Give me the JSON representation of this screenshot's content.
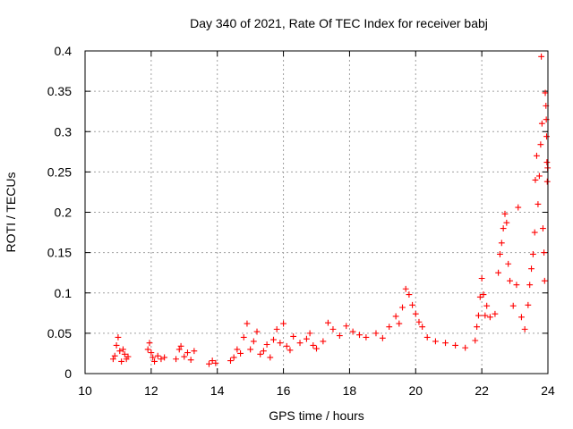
{
  "chart_data": {
    "type": "scatter",
    "title": "Day 340 of 2021, Rate Of TEC Index for receiver babj",
    "xlabel": "GPS time / hours",
    "ylabel": "ROTI / TECUs",
    "xlim": [
      10,
      24
    ],
    "ylim": [
      0,
      0.4
    ],
    "xticks": [
      "10",
      "12",
      "14",
      "16",
      "18",
      "20",
      "22",
      "24"
    ],
    "yticks": [
      "0",
      "0.05",
      "0.1",
      "0.15",
      "0.2",
      "0.25",
      "0.3",
      "0.35",
      "0.4"
    ],
    "grid": true,
    "marker": "plus",
    "series": [
      {
        "name": "ROTI",
        "color": "#ff0000",
        "points": [
          [
            10.85,
            0.018
          ],
          [
            10.9,
            0.022
          ],
          [
            10.95,
            0.035
          ],
          [
            11.0,
            0.045
          ],
          [
            11.05,
            0.028
          ],
          [
            11.1,
            0.015
          ],
          [
            11.15,
            0.03
          ],
          [
            11.2,
            0.024
          ],
          [
            11.25,
            0.018
          ],
          [
            11.3,
            0.021
          ],
          [
            11.9,
            0.03
          ],
          [
            11.95,
            0.038
          ],
          [
            12.0,
            0.026
          ],
          [
            12.05,
            0.02
          ],
          [
            12.1,
            0.015
          ],
          [
            12.2,
            0.022
          ],
          [
            12.3,
            0.018
          ],
          [
            12.4,
            0.02
          ],
          [
            12.75,
            0.018
          ],
          [
            12.85,
            0.03
          ],
          [
            12.9,
            0.034
          ],
          [
            13.0,
            0.021
          ],
          [
            13.1,
            0.026
          ],
          [
            13.2,
            0.017
          ],
          [
            13.3,
            0.028
          ],
          [
            13.75,
            0.012
          ],
          [
            13.85,
            0.016
          ],
          [
            13.95,
            0.013
          ],
          [
            14.4,
            0.016
          ],
          [
            14.5,
            0.02
          ],
          [
            14.6,
            0.03
          ],
          [
            14.7,
            0.025
          ],
          [
            14.8,
            0.045
          ],
          [
            14.9,
            0.062
          ],
          [
            15.0,
            0.03
          ],
          [
            15.1,
            0.04
          ],
          [
            15.2,
            0.052
          ],
          [
            15.3,
            0.024
          ],
          [
            15.4,
            0.028
          ],
          [
            15.5,
            0.036
          ],
          [
            15.6,
            0.02
          ],
          [
            15.7,
            0.042
          ],
          [
            15.8,
            0.055
          ],
          [
            15.9,
            0.038
          ],
          [
            16.0,
            0.062
          ],
          [
            16.1,
            0.034
          ],
          [
            16.2,
            0.029
          ],
          [
            16.3,
            0.046
          ],
          [
            16.5,
            0.038
          ],
          [
            16.7,
            0.043
          ],
          [
            16.8,
            0.05
          ],
          [
            16.9,
            0.035
          ],
          [
            17.0,
            0.031
          ],
          [
            17.2,
            0.04
          ],
          [
            17.35,
            0.063
          ],
          [
            17.5,
            0.055
          ],
          [
            17.7,
            0.047
          ],
          [
            17.9,
            0.059
          ],
          [
            18.1,
            0.052
          ],
          [
            18.3,
            0.048
          ],
          [
            18.5,
            0.045
          ],
          [
            18.8,
            0.05
          ],
          [
            19.0,
            0.044
          ],
          [
            19.2,
            0.058
          ],
          [
            19.4,
            0.071
          ],
          [
            19.5,
            0.062
          ],
          [
            19.6,
            0.082
          ],
          [
            19.7,
            0.105
          ],
          [
            19.8,
            0.098
          ],
          [
            19.9,
            0.085
          ],
          [
            20.0,
            0.074
          ],
          [
            20.1,
            0.064
          ],
          [
            20.2,
            0.058
          ],
          [
            20.35,
            0.045
          ],
          [
            20.6,
            0.04
          ],
          [
            20.9,
            0.038
          ],
          [
            21.2,
            0.035
          ],
          [
            21.5,
            0.032
          ],
          [
            21.8,
            0.041
          ],
          [
            21.85,
            0.058
          ],
          [
            21.9,
            0.072
          ],
          [
            21.95,
            0.095
          ],
          [
            22.0,
            0.118
          ],
          [
            22.05,
            0.098
          ],
          [
            22.1,
            0.072
          ],
          [
            22.15,
            0.084
          ],
          [
            22.25,
            0.07
          ],
          [
            22.4,
            0.074
          ],
          [
            22.5,
            0.125
          ],
          [
            22.55,
            0.148
          ],
          [
            22.6,
            0.162
          ],
          [
            22.65,
            0.18
          ],
          [
            22.7,
            0.198
          ],
          [
            22.75,
            0.187
          ],
          [
            22.8,
            0.136
          ],
          [
            22.85,
            0.115
          ],
          [
            22.95,
            0.084
          ],
          [
            23.05,
            0.11
          ],
          [
            23.1,
            0.206
          ],
          [
            23.2,
            0.07
          ],
          [
            23.3,
            0.055
          ],
          [
            23.4,
            0.085
          ],
          [
            23.45,
            0.11
          ],
          [
            23.5,
            0.13
          ],
          [
            23.55,
            0.148
          ],
          [
            23.6,
            0.175
          ],
          [
            23.62,
            0.24
          ],
          [
            23.66,
            0.27
          ],
          [
            23.7,
            0.21
          ],
          [
            23.74,
            0.245
          ],
          [
            23.78,
            0.284
          ],
          [
            23.8,
            0.393
          ],
          [
            23.82,
            0.31
          ],
          [
            23.85,
            0.18
          ],
          [
            23.88,
            0.15
          ],
          [
            23.9,
            0.115
          ],
          [
            23.92,
            0.348
          ],
          [
            23.94,
            0.332
          ],
          [
            23.95,
            0.315
          ],
          [
            23.96,
            0.294
          ],
          [
            23.97,
            0.262
          ],
          [
            23.98,
            0.238
          ],
          [
            23.99,
            0.255
          ]
        ]
      }
    ]
  }
}
